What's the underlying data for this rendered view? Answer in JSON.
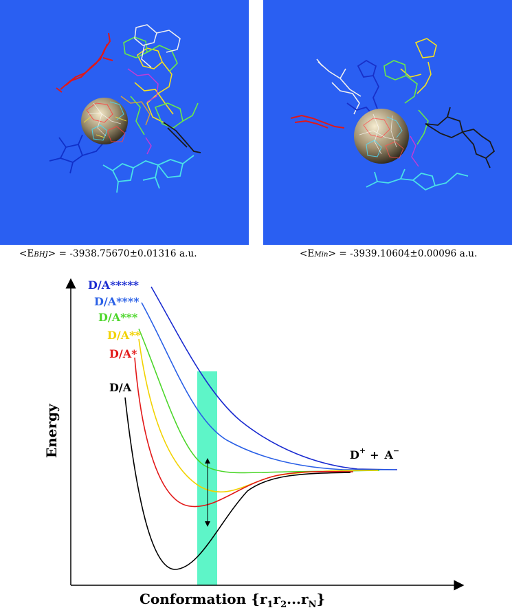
{
  "captions": {
    "left": {
      "prefix": "<E",
      "sub": "BHJ",
      "suffix": "> = -3938.75670±0.01316 a.u."
    },
    "right": {
      "prefix": "<E",
      "sub": "Min",
      "suffix": "> = -3939.10604±0.00096 a.u."
    }
  },
  "diagram": {
    "y_axis_label": "Energy",
    "x_axis_label": "Conformation {r",
    "x_axis_subs": [
      "1",
      "2",
      "N"
    ],
    "x_axis_mid": "...r",
    "x_axis_end": "}",
    "asymptote_label": {
      "d": "D",
      "plus": "+",
      "a": "A",
      "d_sup": "+",
      "a_sup": "−",
      "joiner": "+"
    },
    "states": [
      {
        "name": "D/A*****",
        "base": "D/A",
        "stars": "*****",
        "color": "#1a2bd0"
      },
      {
        "name": "D/A****",
        "base": "D/A",
        "stars": "****",
        "color": "#2a60e6"
      },
      {
        "name": "D/A***",
        "base": "D/A",
        "stars": "***",
        "color": "#4cd62a"
      },
      {
        "name": "D/A**",
        "base": "D/A",
        "stars": "**",
        "color": "#f2d200"
      },
      {
        "name": "D/A*",
        "base": "D/A",
        "stars": "*",
        "color": "#e21818"
      },
      {
        "name": "D/A",
        "base": "D/A",
        "stars": "",
        "color": "#000000"
      }
    ],
    "highlight_color": "#5ef5c8",
    "panel_background": "#2a5ff2"
  }
}
